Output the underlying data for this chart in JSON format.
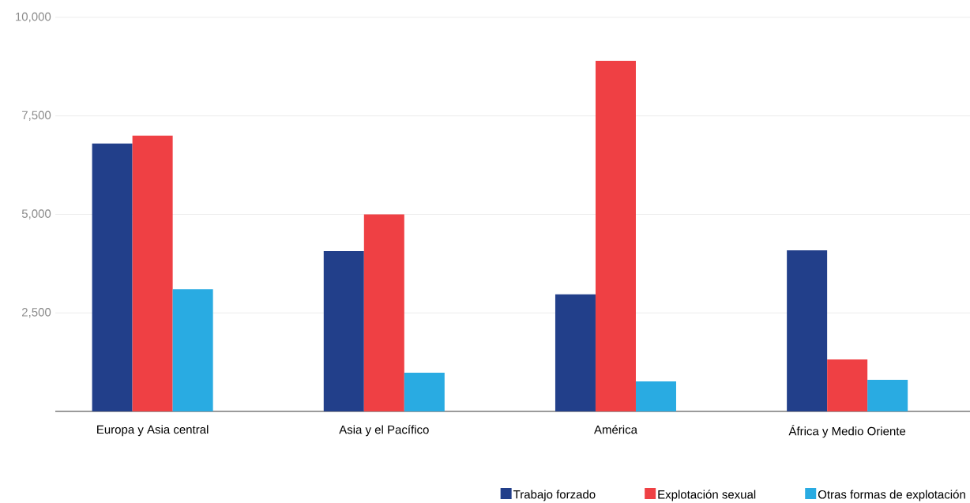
{
  "chart_data": {
    "type": "bar",
    "categories": [
      "Europa y Asia central",
      "Asia y el Pacífico",
      "América",
      "África y Medio Oriente"
    ],
    "series": [
      {
        "name": "Trabajo forzado",
        "color": "#223f8a",
        "values": [
          6800,
          4070,
          2970,
          4090
        ]
      },
      {
        "name": "Explotación sexual",
        "color": "#ef4044",
        "values": [
          7000,
          5000,
          8900,
          1320
        ]
      },
      {
        "name": "Otras formas de explotación",
        "color": "#29abe2",
        "values": [
          3100,
          980,
          760,
          800
        ]
      }
    ],
    "ylim": [
      0,
      10000
    ],
    "yticks": [
      {
        "value": 0,
        "label": null
      },
      {
        "value": 2500,
        "label": "2,500"
      },
      {
        "value": 5000,
        "label": "5,000"
      },
      {
        "value": 7500,
        "label": "7,500"
      },
      {
        "value": 10000,
        "label": "10,000"
      }
    ],
    "grid": "y",
    "legend": "bottom"
  }
}
